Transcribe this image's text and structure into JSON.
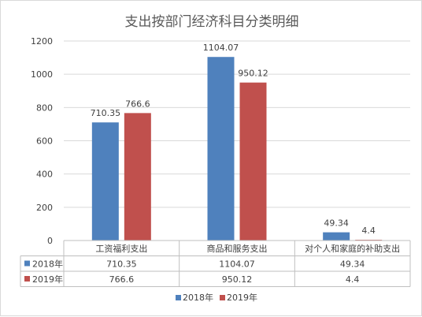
{
  "chart_data": {
    "type": "bar",
    "title": "支出按部门经济科目分类明细",
    "categories": [
      "工资福利支出",
      "商品和服务支出",
      "对个人和家庭的补助支出"
    ],
    "series": [
      {
        "name": "2018年",
        "color": "#4f81bd",
        "values": [
          710.35,
          1104.07,
          49.34
        ],
        "labels": [
          "710.35",
          "1104.07",
          "49.34"
        ]
      },
      {
        "name": "2019年",
        "color": "#c0504d",
        "values": [
          766.6,
          950.12,
          4.4
        ],
        "labels": [
          "766.6",
          "950.12",
          "4.4"
        ]
      }
    ],
    "ylim": [
      0,
      1200
    ],
    "yticks": [
      0,
      200,
      400,
      600,
      800,
      1000,
      1200
    ],
    "grid": true,
    "data_table": true,
    "legend": "bottom"
  }
}
